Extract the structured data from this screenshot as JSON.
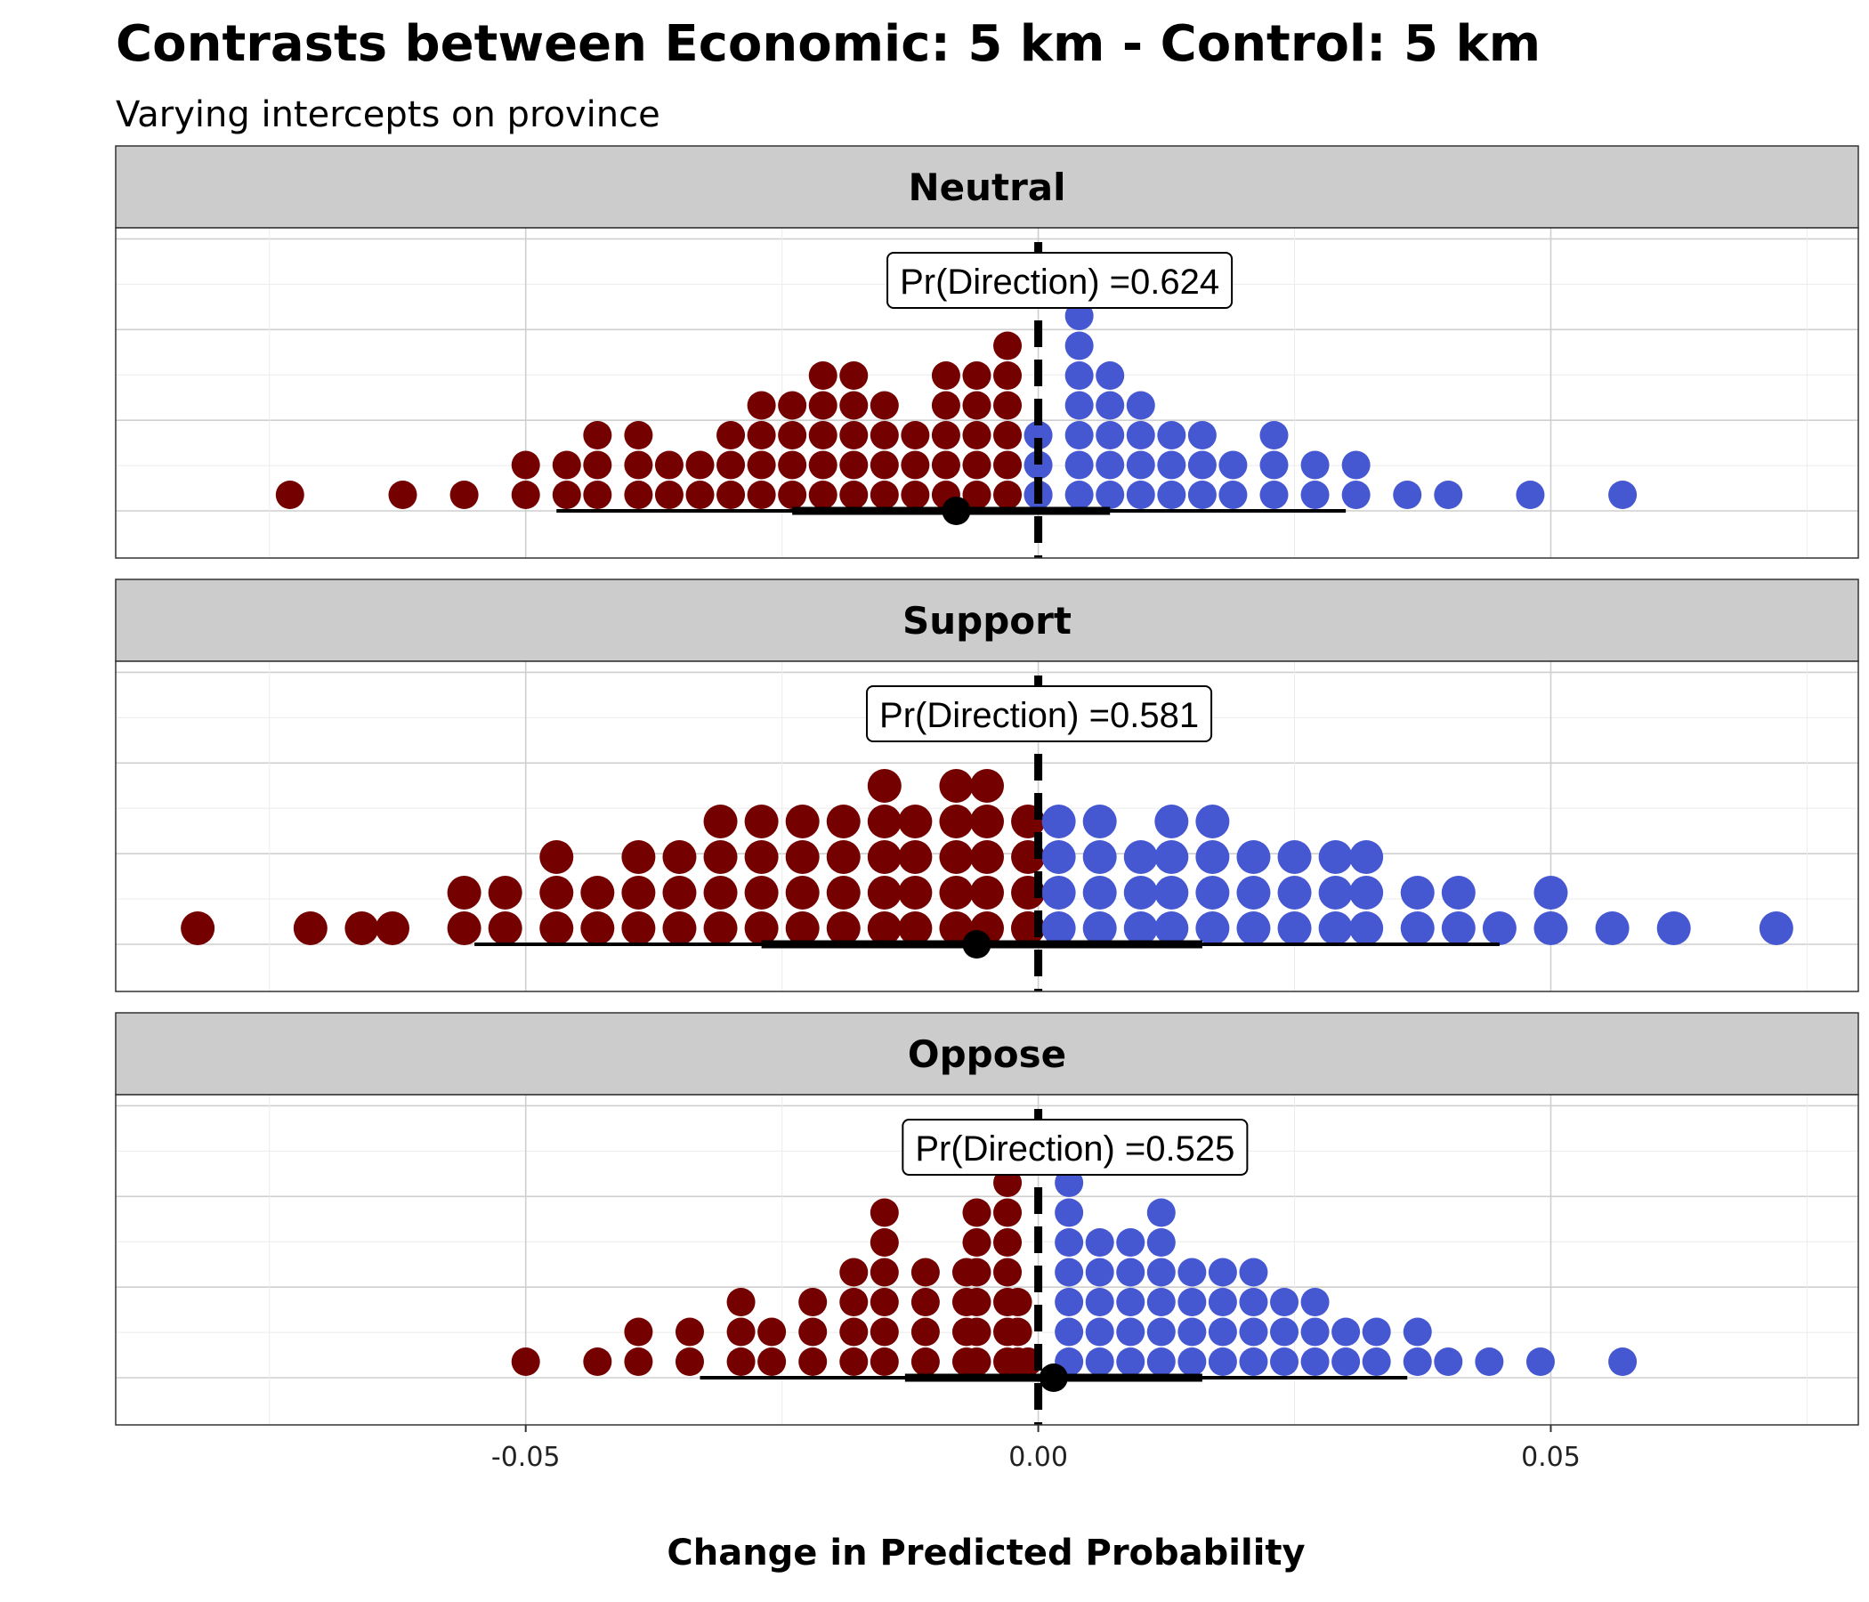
{
  "chart_data": {
    "type": "dotplot",
    "title": "Contrasts between Economic: 5 km - Control: 5 km",
    "subtitle": "Varying intercepts on province",
    "xlabel": "Change in Predicted Probability",
    "xlim": [
      -0.09,
      0.08
    ],
    "xticks": [
      -0.05,
      0.0,
      0.05
    ],
    "xtick_labels": [
      "-0.05",
      "0.00",
      "0.05"
    ],
    "reference_line": 0,
    "colors": {
      "negative": "#740000",
      "positive": "#4557d1",
      "point": "#000000",
      "strip_bg": "#cccccc",
      "grid": "#d9d9d9"
    },
    "panels": [
      {
        "facet": "Neutral",
        "pd_label": "Pr(Direction) =0.624",
        "pd_x": 0.0,
        "median": -0.008,
        "interval_inner": [
          -0.024,
          0.007
        ],
        "interval_outer": [
          -0.047,
          0.03
        ],
        "stacks": [
          {
            "x": -0.073,
            "n": 1
          },
          {
            "x": -0.062,
            "n": 1
          },
          {
            "x": -0.056,
            "n": 1
          },
          {
            "x": -0.05,
            "n": 2
          },
          {
            "x": -0.046,
            "n": 2
          },
          {
            "x": -0.043,
            "n": 3
          },
          {
            "x": -0.039,
            "n": 3
          },
          {
            "x": -0.036,
            "n": 2
          },
          {
            "x": -0.033,
            "n": 2
          },
          {
            "x": -0.03,
            "n": 3
          },
          {
            "x": -0.027,
            "n": 4
          },
          {
            "x": -0.024,
            "n": 4
          },
          {
            "x": -0.021,
            "n": 5
          },
          {
            "x": -0.018,
            "n": 5
          },
          {
            "x": -0.015,
            "n": 4
          },
          {
            "x": -0.012,
            "n": 3
          },
          {
            "x": -0.009,
            "n": 5
          },
          {
            "x": -0.006,
            "n": 5
          },
          {
            "x": -0.003,
            "n": 6
          },
          {
            "x": 0.0,
            "n": 1
          },
          {
            "x": 0.0,
            "n": 3
          },
          {
            "x": 0.004,
            "n": 7
          },
          {
            "x": 0.007,
            "n": 5
          },
          {
            "x": 0.01,
            "n": 4
          },
          {
            "x": 0.013,
            "n": 3
          },
          {
            "x": 0.016,
            "n": 3
          },
          {
            "x": 0.019,
            "n": 2
          },
          {
            "x": 0.023,
            "n": 3
          },
          {
            "x": 0.027,
            "n": 2
          },
          {
            "x": 0.031,
            "n": 2
          },
          {
            "x": 0.036,
            "n": 1
          },
          {
            "x": 0.04,
            "n": 1
          },
          {
            "x": 0.048,
            "n": 1
          },
          {
            "x": 0.057,
            "n": 1
          }
        ]
      },
      {
        "facet": "Support",
        "pd_label": "Pr(Direction) =0.581",
        "pd_x": -0.002,
        "median": -0.006,
        "interval_inner": [
          -0.027,
          0.016
        ],
        "interval_outer": [
          -0.055,
          0.045
        ],
        "stacks": [
          {
            "x": -0.082,
            "n": 1
          },
          {
            "x": -0.071,
            "n": 1
          },
          {
            "x": -0.066,
            "n": 1
          },
          {
            "x": -0.063,
            "n": 1
          },
          {
            "x": -0.056,
            "n": 2
          },
          {
            "x": -0.052,
            "n": 2
          },
          {
            "x": -0.047,
            "n": 3
          },
          {
            "x": -0.043,
            "n": 2
          },
          {
            "x": -0.039,
            "n": 3
          },
          {
            "x": -0.035,
            "n": 3
          },
          {
            "x": -0.031,
            "n": 4
          },
          {
            "x": -0.027,
            "n": 4
          },
          {
            "x": -0.023,
            "n": 4
          },
          {
            "x": -0.019,
            "n": 4
          },
          {
            "x": -0.015,
            "n": 5
          },
          {
            "x": -0.012,
            "n": 4
          },
          {
            "x": -0.008,
            "n": 5
          },
          {
            "x": -0.005,
            "n": 5
          },
          {
            "x": -0.001,
            "n": 4
          },
          {
            "x": -0.001,
            "n": 1
          },
          {
            "x": 0.002,
            "n": 4
          },
          {
            "x": 0.006,
            "n": 4
          },
          {
            "x": 0.01,
            "n": 3
          },
          {
            "x": 0.013,
            "n": 4
          },
          {
            "x": 0.017,
            "n": 4
          },
          {
            "x": 0.021,
            "n": 3
          },
          {
            "x": 0.025,
            "n": 3
          },
          {
            "x": 0.029,
            "n": 3
          },
          {
            "x": 0.032,
            "n": 3
          },
          {
            "x": 0.037,
            "n": 2
          },
          {
            "x": 0.041,
            "n": 2
          },
          {
            "x": 0.045,
            "n": 1
          },
          {
            "x": 0.05,
            "n": 2
          },
          {
            "x": 0.056,
            "n": 1
          },
          {
            "x": 0.062,
            "n": 1
          },
          {
            "x": 0.072,
            "n": 1
          }
        ]
      },
      {
        "facet": "Oppose",
        "pd_label": "Pr(Direction) =0.525",
        "pd_x": 0.0015,
        "median": 0.0015,
        "interval_inner": [
          -0.013,
          0.016
        ],
        "interval_outer": [
          -0.033,
          0.036
        ],
        "stacks": [
          {
            "x": -0.05,
            "n": 1
          },
          {
            "x": -0.043,
            "n": 1
          },
          {
            "x": -0.039,
            "n": 2
          },
          {
            "x": -0.034,
            "n": 2
          },
          {
            "x": -0.029,
            "n": 3
          },
          {
            "x": -0.026,
            "n": 2
          },
          {
            "x": -0.022,
            "n": 3
          },
          {
            "x": -0.018,
            "n": 4
          },
          {
            "x": -0.015,
            "n": 6
          },
          {
            "x": -0.011,
            "n": 4
          },
          {
            "x": -0.007,
            "n": 4
          },
          {
            "x": -0.006,
            "n": 6
          },
          {
            "x": -0.003,
            "n": 7
          },
          {
            "x": -0.001,
            "n": 1
          },
          {
            "x": -0.002,
            "n": 3
          },
          {
            "x": 0.003,
            "n": 7
          },
          {
            "x": 0.006,
            "n": 5
          },
          {
            "x": 0.009,
            "n": 5
          },
          {
            "x": 0.012,
            "n": 6
          },
          {
            "x": 0.015,
            "n": 4
          },
          {
            "x": 0.018,
            "n": 4
          },
          {
            "x": 0.021,
            "n": 4
          },
          {
            "x": 0.024,
            "n": 3
          },
          {
            "x": 0.027,
            "n": 3
          },
          {
            "x": 0.03,
            "n": 2
          },
          {
            "x": 0.033,
            "n": 2
          },
          {
            "x": 0.037,
            "n": 2
          },
          {
            "x": 0.04,
            "n": 1
          },
          {
            "x": 0.044,
            "n": 1
          },
          {
            "x": 0.049,
            "n": 1
          },
          {
            "x": 0.057,
            "n": 1
          }
        ]
      }
    ]
  }
}
